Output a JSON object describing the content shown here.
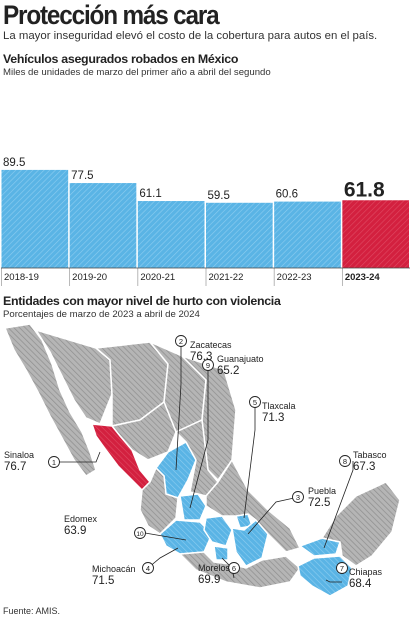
{
  "header": {
    "title": "Protección más cara",
    "subtitle": "La mayor inseguridad elevó el costo de la cobertura para autos en el país."
  },
  "chart1": {
    "title": "Vehículos asegurados robados en México",
    "subtitle": "Miles de unidades de marzo del primer año a abril del segundo"
  },
  "chart2": {
    "title": "Entidades con mayor nivel de hurto con violencia",
    "subtitle": "Porcentajes de marzo de 2023 a abril de 2024"
  },
  "colors": {
    "bar": "#5ab4e5",
    "highlight": "#d3203f",
    "map_gray": "#b1b1b1",
    "map_blue": "#5ab4e5",
    "map_red": "#d3203f",
    "text": "#222222"
  },
  "chart_data": [
    {
      "type": "bar",
      "categories": [
        "2018-19",
        "2019-20",
        "2020-21",
        "2021-22",
        "2022-23",
        "2023-24"
      ],
      "values": [
        89.5,
        77.5,
        61.1,
        59.5,
        60.6,
        61.8
      ],
      "value_labels": [
        "89.5",
        "77.5",
        "61.1",
        "59.5",
        "60.6",
        "61.8"
      ],
      "highlight_index": 5,
      "ylim": [
        0,
        100
      ],
      "grid": false
    },
    {
      "type": "table",
      "columns": [
        "rank",
        "state",
        "percent"
      ],
      "rows": [
        {
          "rank": "1",
          "state": "Sinaloa",
          "value": "76.7"
        },
        {
          "rank": "2",
          "state": "Zacatecas",
          "value": "76.3"
        },
        {
          "rank": "3",
          "state": "Puebla",
          "value": "72.5"
        },
        {
          "rank": "4",
          "state": "Michoacán",
          "value": "71.5"
        },
        {
          "rank": "5",
          "state": "Tlaxcala",
          "value": "71.3"
        },
        {
          "rank": "6",
          "state": "Morelos",
          "value": "69.9"
        },
        {
          "rank": "7",
          "state": "Chiapas",
          "value": "68.4"
        },
        {
          "rank": "8",
          "state": "Tabasco",
          "value": "67.3"
        },
        {
          "rank": "9",
          "state": "Guanajuato",
          "value": "65.2"
        },
        {
          "rank": "10",
          "state": "Edomex",
          "value": "63.9"
        }
      ]
    }
  ],
  "footer": {
    "source": "Fuente: AMIS."
  }
}
